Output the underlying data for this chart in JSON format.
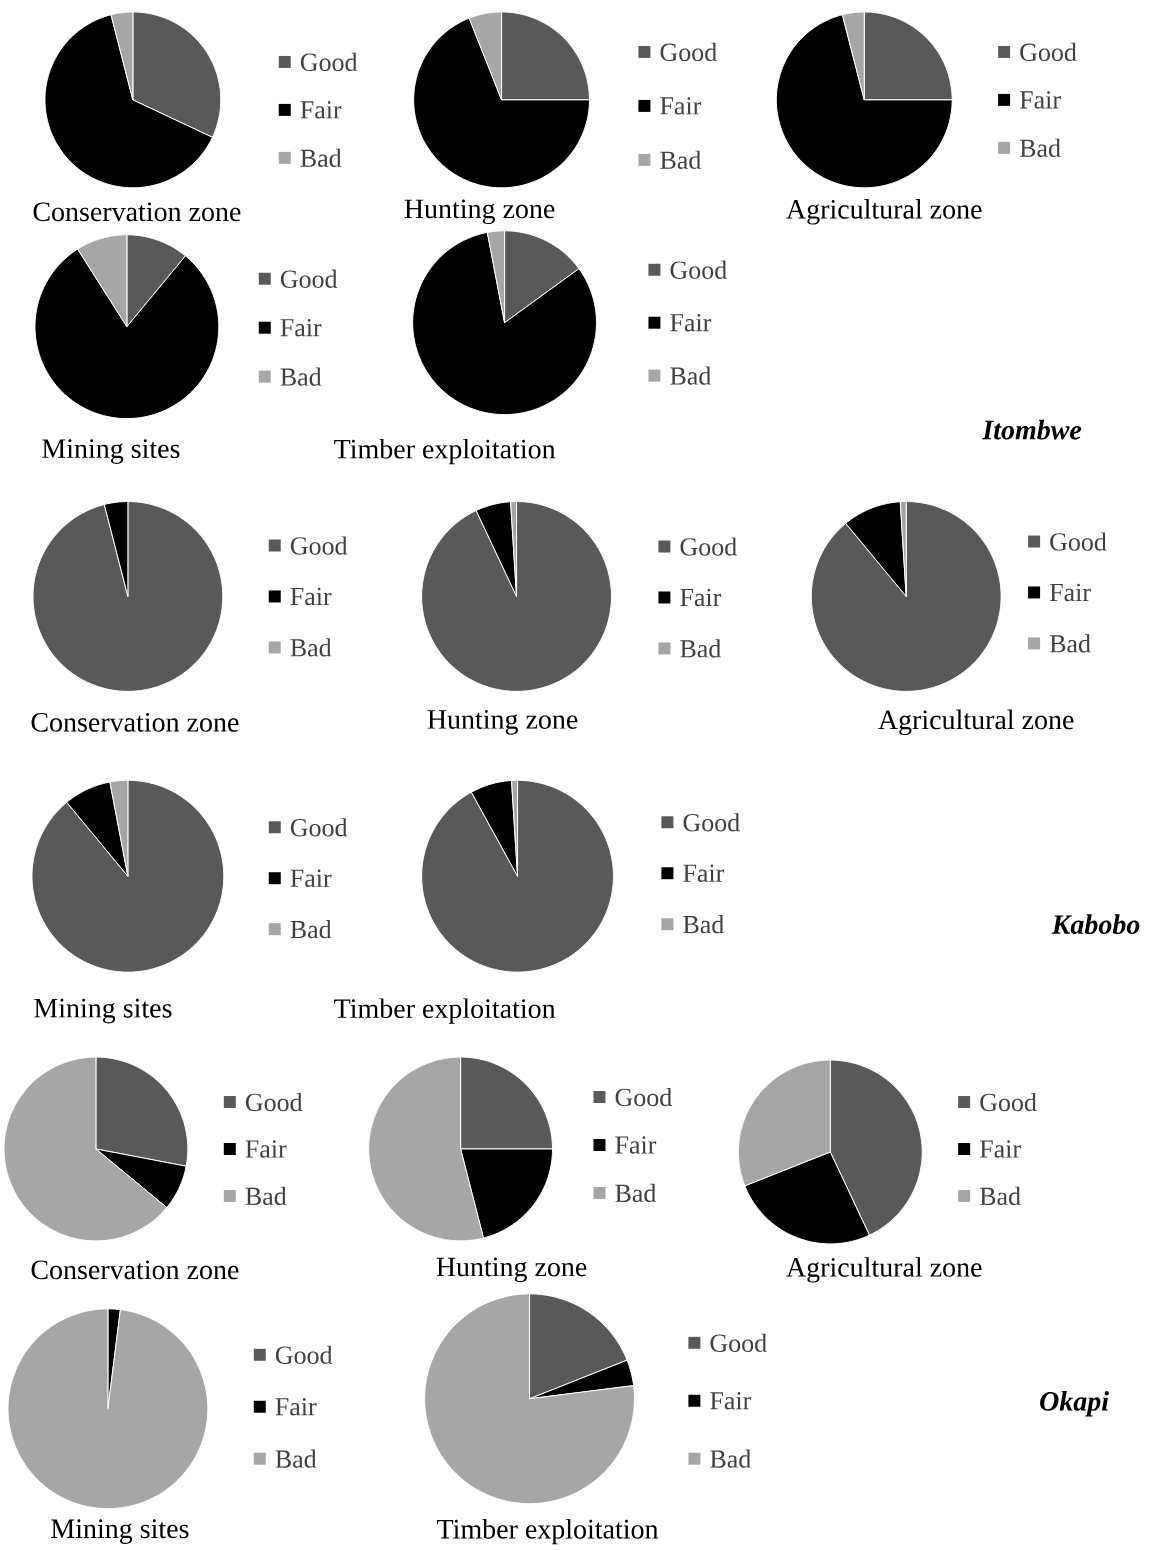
{
  "chart_data": [
    {
      "type": "pie",
      "title": "Conservation zone",
      "categories": [
        "Good",
        "Fair",
        "Bad"
      ],
      "values": [
        32,
        64,
        4
      ],
      "colors": [
        "#595959",
        "#000000",
        "#a6a6a6"
      ],
      "legend": "right"
    },
    {
      "type": "pie",
      "title": "Hunting zone",
      "categories": [
        "Good",
        "Fair",
        "Bad"
      ],
      "values": [
        25,
        69,
        6
      ],
      "colors": [
        "#595959",
        "#000000",
        "#a6a6a6"
      ],
      "legend": "right"
    },
    {
      "type": "pie",
      "title": "Agricultural zone",
      "categories": [
        "Good",
        "Fair",
        "Bad"
      ],
      "values": [
        25,
        71,
        4
      ],
      "colors": [
        "#595959",
        "#000000",
        "#a6a6a6"
      ],
      "legend": "right"
    },
    {
      "type": "pie",
      "title": "Mining sites",
      "categories": [
        "Good",
        "Fair",
        "Bad"
      ],
      "values": [
        11,
        80,
        9
      ],
      "colors": [
        "#595959",
        "#000000",
        "#a6a6a6"
      ],
      "legend": "right"
    },
    {
      "type": "pie",
      "title": "Timber exploitation",
      "categories": [
        "Good",
        "Fair",
        "Bad"
      ],
      "values": [
        15,
        82,
        3
      ],
      "colors": [
        "#595959",
        "#000000",
        "#a6a6a6"
      ],
      "legend": "right",
      "annotations": [
        "Itombwe"
      ]
    },
    {
      "type": "pie",
      "title": "Conservation zone",
      "categories": [
        "Good",
        "Fair",
        "Bad"
      ],
      "values": [
        96,
        4,
        0
      ],
      "colors": [
        "#595959",
        "#000000",
        "#a6a6a6"
      ],
      "legend": "right"
    },
    {
      "type": "pie",
      "title": "Hunting zone",
      "categories": [
        "Good",
        "Fair",
        "Bad"
      ],
      "values": [
        93,
        6,
        1
      ],
      "colors": [
        "#595959",
        "#000000",
        "#a6a6a6"
      ],
      "legend": "right"
    },
    {
      "type": "pie",
      "title": "Agricultural zone",
      "categories": [
        "Good",
        "Fair",
        "Bad"
      ],
      "values": [
        89,
        10,
        1
      ],
      "colors": [
        "#595959",
        "#000000",
        "#a6a6a6"
      ],
      "legend": "right"
    },
    {
      "type": "pie",
      "title": "Mining sites",
      "categories": [
        "Good",
        "Fair",
        "Bad"
      ],
      "values": [
        89,
        8,
        3
      ],
      "colors": [
        "#595959",
        "#000000",
        "#a6a6a6"
      ],
      "legend": "right"
    },
    {
      "type": "pie",
      "title": "Timber exploitation",
      "categories": [
        "Good",
        "Fair",
        "Bad"
      ],
      "values": [
        92,
        7,
        1
      ],
      "colors": [
        "#595959",
        "#000000",
        "#a6a6a6"
      ],
      "legend": "right",
      "annotations": [
        "Kabobo"
      ]
    },
    {
      "type": "pie",
      "title": "Conservation zone",
      "categories": [
        "Good",
        "Fair",
        "Bad"
      ],
      "values": [
        28,
        8,
        64
      ],
      "colors": [
        "#595959",
        "#000000",
        "#a6a6a6"
      ],
      "legend": "right"
    },
    {
      "type": "pie",
      "title": "Hunting zone",
      "categories": [
        "Good",
        "Fair",
        "Bad"
      ],
      "values": [
        25,
        21,
        54
      ],
      "colors": [
        "#595959",
        "#000000",
        "#a6a6a6"
      ],
      "legend": "right"
    },
    {
      "type": "pie",
      "title": "Agricultural zone",
      "categories": [
        "Good",
        "Fair",
        "Bad"
      ],
      "values": [
        43,
        26,
        31
      ],
      "colors": [
        "#595959",
        "#000000",
        "#a6a6a6"
      ],
      "legend": "right"
    },
    {
      "type": "pie",
      "title": "Mining sites",
      "categories": [
        "Good",
        "Fair",
        "Bad"
      ],
      "values": [
        0,
        2,
        98
      ],
      "colors": [
        "#595959",
        "#000000",
        "#a6a6a6"
      ],
      "legend": "right"
    },
    {
      "type": "pie",
      "title": "Timber exploitation",
      "categories": [
        "Good",
        "Fair",
        "Bad"
      ],
      "values": [
        19,
        4,
        77
      ],
      "colors": [
        "#595959",
        "#000000",
        "#a6a6a6"
      ],
      "legend": "right",
      "annotations": [
        "Okapi"
      ]
    }
  ]
}
